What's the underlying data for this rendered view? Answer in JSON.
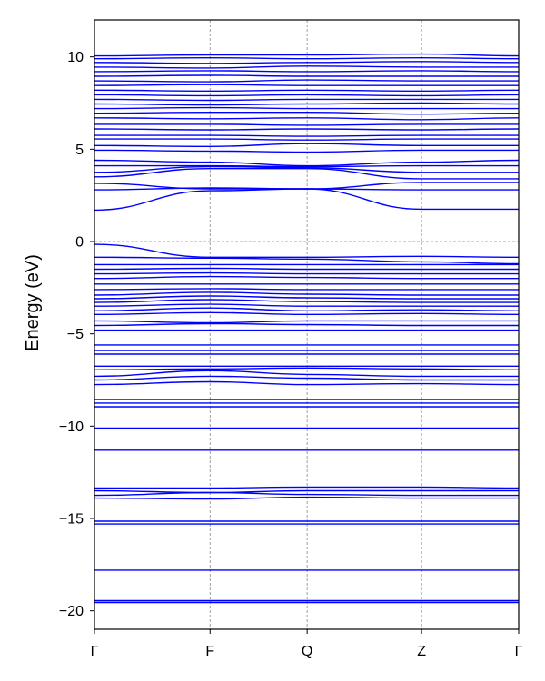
{
  "chart_data": {
    "type": "line",
    "title": "",
    "xlabel": "",
    "ylabel": "Energy (eV)",
    "ylim": [
      -21,
      12
    ],
    "yticks": [
      10,
      5,
      0,
      -5,
      -10,
      -15,
      -20
    ],
    "ytick_labels": [
      "10",
      "5",
      "0",
      "−5",
      "−10",
      "−15",
      "−20"
    ],
    "kpoints": [
      {
        "label": "Γ",
        "x": 0
      },
      {
        "label": "F",
        "x": 1.0
      },
      {
        "label": "Q",
        "x": 1.84
      },
      {
        "label": "Z",
        "x": 2.83
      },
      {
        "label": "Γ",
        "x": 3.67
      }
    ],
    "grid": "dashed vertical lines at high-symmetry points and horizontal line at 0 eV",
    "line_color": "#0000ff",
    "series": [
      {
        "y": [
          -19.55,
          -19.55,
          -19.55,
          -19.55,
          -19.55
        ]
      },
      {
        "y": [
          -19.45,
          -19.45,
          -19.45,
          -19.45,
          -19.45
        ]
      },
      {
        "y": [
          -17.8,
          -17.8,
          -17.8,
          -17.8,
          -17.8
        ]
      },
      {
        "y": [
          -15.3,
          -15.3,
          -15.3,
          -15.3,
          -15.3
        ]
      },
      {
        "y": [
          -15.15,
          -15.15,
          -15.15,
          -15.15,
          -15.15
        ]
      },
      {
        "y": [
          -13.9,
          -13.95,
          -13.85,
          -13.9,
          -13.9
        ]
      },
      {
        "y": [
          -13.75,
          -13.6,
          -13.7,
          -13.75,
          -13.75
        ]
      },
      {
        "y": [
          -13.5,
          -13.6,
          -13.5,
          -13.5,
          -13.5
        ]
      },
      {
        "y": [
          -13.35,
          -13.35,
          -13.3,
          -13.3,
          -13.35
        ]
      },
      {
        "y": [
          -11.3,
          -11.3,
          -11.3,
          -11.3,
          -11.3
        ]
      },
      {
        "y": [
          -10.1,
          -10.1,
          -10.1,
          -10.1,
          -10.1
        ]
      },
      {
        "y": [
          -8.95,
          -8.95,
          -8.95,
          -8.95,
          -8.95
        ]
      },
      {
        "y": [
          -8.75,
          -8.75,
          -8.75,
          -8.75,
          -8.75
        ]
      },
      {
        "y": [
          -8.55,
          -8.55,
          -8.55,
          -8.55,
          -8.55
        ]
      },
      {
        "y": [
          -7.75,
          -7.6,
          -7.75,
          -7.7,
          -7.75
        ]
      },
      {
        "y": [
          -7.5,
          -7.3,
          -7.4,
          -7.5,
          -7.5
        ]
      },
      {
        "y": [
          -7.3,
          -7.0,
          -7.2,
          -7.3,
          -7.3
        ]
      },
      {
        "y": [
          -6.95,
          -6.9,
          -6.85,
          -6.9,
          -6.95
        ]
      },
      {
        "y": [
          -6.75,
          -6.75,
          -6.75,
          -6.75,
          -6.75
        ]
      },
      {
        "y": [
          -6.1,
          -6.1,
          -6.1,
          -6.1,
          -6.1
        ]
      },
      {
        "y": [
          -5.9,
          -5.9,
          -5.9,
          -5.9,
          -5.9
        ]
      },
      {
        "y": [
          -5.6,
          -5.6,
          -5.6,
          -5.6,
          -5.6
        ]
      },
      {
        "y": [
          -4.8,
          -4.8,
          -4.8,
          -4.8,
          -4.8
        ]
      },
      {
        "y": [
          -4.55,
          -4.45,
          -4.5,
          -4.55,
          -4.55
        ]
      },
      {
        "y": [
          -4.3,
          -4.4,
          -4.3,
          -4.3,
          -4.3
        ]
      },
      {
        "y": [
          -3.95,
          -3.85,
          -3.95,
          -3.9,
          -3.95
        ]
      },
      {
        "y": [
          -3.75,
          -3.6,
          -3.75,
          -3.7,
          -3.75
        ]
      },
      {
        "y": [
          -3.5,
          -3.4,
          -3.5,
          -3.5,
          -3.5
        ]
      },
      {
        "y": [
          -3.3,
          -3.15,
          -3.25,
          -3.3,
          -3.3
        ]
      },
      {
        "y": [
          -3.1,
          -2.95,
          -3.05,
          -3.1,
          -3.1
        ]
      },
      {
        "y": [
          -2.9,
          -2.75,
          -2.85,
          -2.9,
          -2.9
        ]
      },
      {
        "y": [
          -2.6,
          -2.55,
          -2.6,
          -2.6,
          -2.6
        ]
      },
      {
        "y": [
          -2.3,
          -2.3,
          -2.3,
          -2.3,
          -2.3
        ]
      },
      {
        "y": [
          -2.0,
          -1.9,
          -1.95,
          -2.0,
          -2.0
        ]
      },
      {
        "y": [
          -1.75,
          -1.7,
          -1.75,
          -1.75,
          -1.75
        ]
      },
      {
        "y": [
          -1.5,
          -1.45,
          -1.5,
          -1.5,
          -1.5
        ]
      },
      {
        "y": [
          -1.25,
          -1.25,
          -1.25,
          -1.25,
          -1.25
        ]
      },
      {
        "y": [
          -0.85,
          -0.9,
          -0.95,
          -1.1,
          -1.2
        ]
      },
      {
        "y": [
          -0.15,
          -0.85,
          -0.85,
          -0.8,
          -0.85
        ]
      },
      {
        "y": [
          1.7,
          2.75,
          2.85,
          1.75,
          1.75
        ]
      },
      {
        "y": [
          2.8,
          2.9,
          2.85,
          2.8,
          2.8
        ]
      },
      {
        "y": [
          3.15,
          2.85,
          2.85,
          3.2,
          3.2
        ]
      },
      {
        "y": [
          3.5,
          3.95,
          3.95,
          3.4,
          3.4
        ]
      },
      {
        "y": [
          3.75,
          4.05,
          4.0,
          3.75,
          3.75
        ]
      },
      {
        "y": [
          4.1,
          4.1,
          4.05,
          4.1,
          4.1
        ]
      },
      {
        "y": [
          4.4,
          4.3,
          4.1,
          4.3,
          4.4
        ]
      },
      {
        "y": [
          4.95,
          4.9,
          4.85,
          4.95,
          4.95
        ]
      },
      {
        "y": [
          5.2,
          5.15,
          5.3,
          5.2,
          5.2
        ]
      },
      {
        "y": [
          5.55,
          5.55,
          5.5,
          5.55,
          5.55
        ]
      },
      {
        "y": [
          5.75,
          5.75,
          5.7,
          5.75,
          5.75
        ]
      },
      {
        "y": [
          6.1,
          6.05,
          6.1,
          6.05,
          6.1
        ]
      },
      {
        "y": [
          6.35,
          6.35,
          6.3,
          6.35,
          6.35
        ]
      },
      {
        "y": [
          6.7,
          6.65,
          6.7,
          6.6,
          6.7
        ]
      },
      {
        "y": [
          6.95,
          7.0,
          7.0,
          6.9,
          6.95
        ]
      },
      {
        "y": [
          7.2,
          7.25,
          7.2,
          7.2,
          7.2
        ]
      },
      {
        "y": [
          7.45,
          7.4,
          7.45,
          7.5,
          7.45
        ]
      },
      {
        "y": [
          7.7,
          7.65,
          7.7,
          7.7,
          7.7
        ]
      },
      {
        "y": [
          7.95,
          7.9,
          7.95,
          7.9,
          7.95
        ]
      },
      {
        "y": [
          8.2,
          8.15,
          8.2,
          8.15,
          8.2
        ]
      },
      {
        "y": [
          8.45,
          8.5,
          8.45,
          8.45,
          8.45
        ]
      },
      {
        "y": [
          8.7,
          8.65,
          8.75,
          8.7,
          8.7
        ]
      },
      {
        "y": [
          8.95,
          9.0,
          8.95,
          8.95,
          8.95
        ]
      },
      {
        "y": [
          9.2,
          9.25,
          9.2,
          9.25,
          9.2
        ]
      },
      {
        "y": [
          9.45,
          9.4,
          9.5,
          9.45,
          9.45
        ]
      },
      {
        "y": [
          9.7,
          9.65,
          9.7,
          9.75,
          9.7
        ]
      },
      {
        "y": [
          9.9,
          9.95,
          9.9,
          9.95,
          9.9
        ]
      },
      {
        "y": [
          10.05,
          10.1,
          10.1,
          10.15,
          10.05
        ]
      }
    ]
  }
}
